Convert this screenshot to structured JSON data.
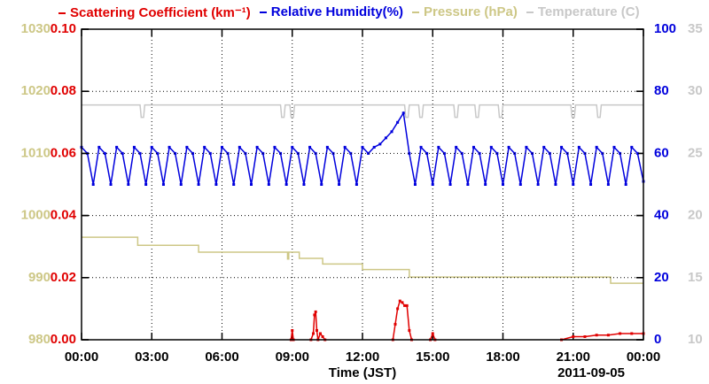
{
  "chart_data": {
    "type": "line",
    "xlabel": "Time (JST)",
    "annotation": "2011-09-05",
    "grid": true,
    "xlim": [
      0,
      24
    ],
    "xticks": [
      {
        "value": 0,
        "label": "00:00"
      },
      {
        "value": 3,
        "label": "03:00"
      },
      {
        "value": 6,
        "label": "06:00"
      },
      {
        "value": 9,
        "label": "09:00"
      },
      {
        "value": 12,
        "label": "12:00"
      },
      {
        "value": 15,
        "label": "15:00"
      },
      {
        "value": 18,
        "label": "18:00"
      },
      {
        "value": 21,
        "label": "21:00"
      },
      {
        "value": 24,
        "label": "00:00"
      }
    ],
    "series": [
      {
        "name": "Scattering Coefficient (km⁻¹)",
        "color": "#e00000",
        "markers": true,
        "ylim": [
          0,
          0.1
        ],
        "yticks": [
          {
            "value": 0,
            "label": "0.00"
          },
          {
            "value": 0.02,
            "label": "0.02"
          },
          {
            "value": 0.04,
            "label": "0.04"
          },
          {
            "value": 0.06,
            "label": "0.06"
          },
          {
            "value": 0.08,
            "label": "0.08"
          },
          {
            "value": 0.1,
            "label": "0.10"
          }
        ],
        "x": [
          8.95,
          9.0,
          9.05,
          9.1,
          9.8,
          9.9,
          9.95,
          10.0,
          10.05,
          10.1,
          10.2,
          10.3,
          10.4,
          12.0,
          13.3,
          13.4,
          13.5,
          13.6,
          13.7,
          13.8,
          13.9,
          14.0,
          14.1,
          14.6,
          14.9,
          15.0,
          15.1,
          19.0,
          20.5,
          21.0,
          21.5,
          22.0,
          22.5,
          23.0,
          23.5,
          24.0
        ],
        "values": [
          0,
          0.003,
          0,
          null,
          0,
          0.002,
          0.008,
          0.009,
          0.003,
          0,
          0.002,
          0.001,
          0,
          null,
          0,
          0.005,
          0.01,
          0.0125,
          0.012,
          0.011,
          0.011,
          0.003,
          0,
          null,
          0,
          0.002,
          0,
          null,
          0,
          0.001,
          0.001,
          0.0015,
          0.0015,
          0.002,
          0.002,
          0.002
        ]
      },
      {
        "name": "Relative Humidity(%)",
        "color": "#0000dd",
        "markers": true,
        "ylim": [
          0,
          100
        ],
        "yticks": [
          0,
          20,
          40,
          60,
          80,
          100
        ],
        "x": [
          0,
          0.25,
          0.5,
          0.75,
          1,
          1.25,
          1.5,
          1.75,
          2,
          2.25,
          2.5,
          2.75,
          3,
          3.25,
          3.5,
          3.75,
          4,
          4.25,
          4.5,
          4.75,
          5,
          5.25,
          5.5,
          5.75,
          6,
          6.25,
          6.5,
          6.75,
          7,
          7.25,
          7.5,
          7.75,
          8,
          8.25,
          8.5,
          8.75,
          9,
          9.25,
          9.5,
          9.75,
          10,
          10.25,
          10.5,
          10.75,
          11,
          11.25,
          11.5,
          11.75,
          12,
          12.25,
          12.5,
          12.75,
          13,
          13.25,
          13.5,
          13.75,
          14,
          14.25,
          14.5,
          14.75,
          15,
          15.25,
          15.5,
          15.75,
          16,
          16.25,
          16.5,
          16.75,
          17,
          17.25,
          17.5,
          17.75,
          18,
          18.25,
          18.5,
          18.75,
          19,
          19.25,
          19.5,
          19.75,
          20,
          20.25,
          20.5,
          20.75,
          21,
          21.25,
          21.5,
          21.75,
          22,
          22.25,
          22.5,
          22.75,
          23,
          23.25,
          23.5,
          23.75,
          24
        ],
        "values": [
          62,
          60,
          50,
          62,
          60,
          50,
          62,
          60,
          50,
          62,
          60,
          50,
          62,
          60,
          50,
          62,
          60,
          50,
          62,
          60,
          50,
          62,
          60,
          50,
          62,
          60,
          50,
          62,
          60,
          50,
          62,
          60,
          50,
          62,
          60,
          50,
          62,
          60,
          50,
          62,
          60,
          50,
          62,
          60,
          50,
          62,
          60,
          50,
          62,
          60,
          62,
          63,
          65,
          67,
          70,
          73,
          60,
          50,
          62,
          60,
          50,
          62,
          60,
          50,
          62,
          60,
          50,
          62,
          60,
          50,
          62,
          60,
          50,
          62,
          60,
          50,
          62,
          60,
          50,
          62,
          60,
          50,
          62,
          60,
          50,
          62,
          60,
          50,
          62,
          60,
          50,
          62,
          60,
          50,
          62,
          60,
          51
        ]
      },
      {
        "name": "Pressure (hPa)",
        "color": "#cdc786",
        "markers": false,
        "ylim": [
          980,
          1030
        ],
        "yticks": [
          980,
          990,
          1000,
          1010,
          1020,
          1030
        ],
        "x": [
          0,
          2.4,
          2.4,
          5.0,
          5.0,
          8.8,
          8.8,
          8.85,
          8.85,
          9.3,
          9.3,
          10.3,
          10.3,
          12.0,
          12.0,
          14.0,
          14.0,
          22.6,
          22.6,
          24
        ],
        "values": [
          996.5,
          996.5,
          995.2,
          995.2,
          994.1,
          994.1,
          993.0,
          993.0,
          994.1,
          994.1,
          993.1,
          993.1,
          992.2,
          992.2,
          991.3,
          991.3,
          990.1,
          990.1,
          989.1,
          989.1
        ]
      },
      {
        "name": "Temperature (C)",
        "color": "#c8c8c8",
        "markers": false,
        "ylim": [
          10,
          35
        ],
        "yticks": [
          10,
          15,
          20,
          25,
          30,
          35
        ],
        "x": [
          0,
          2.5,
          2.55,
          2.65,
          2.7,
          8.5,
          8.55,
          8.65,
          8.7,
          8.9,
          8.95,
          9.05,
          9.1,
          13.8,
          13.85,
          13.95,
          14.0,
          14.4,
          14.45,
          14.55,
          14.6,
          15.9,
          15.95,
          16.05,
          16.1,
          16.8,
          16.85,
          16.95,
          17.0,
          17.8,
          17.85,
          17.95,
          18.0,
          20.9,
          20.95,
          21.05,
          21.1,
          22.0,
          22.05,
          22.15,
          22.2,
          24
        ],
        "values": [
          28.9,
          28.9,
          27.9,
          27.9,
          28.9,
          28.9,
          27.9,
          27.9,
          28.9,
          28.9,
          27.9,
          27.9,
          28.9,
          28.9,
          27.9,
          27.9,
          28.9,
          28.9,
          27.9,
          27.9,
          28.9,
          28.9,
          27.9,
          27.9,
          28.9,
          28.9,
          27.9,
          27.9,
          28.9,
          28.9,
          27.9,
          27.9,
          28.9,
          28.9,
          27.9,
          27.9,
          28.9,
          28.9,
          27.9,
          27.9,
          28.9,
          28.9
        ]
      }
    ]
  }
}
